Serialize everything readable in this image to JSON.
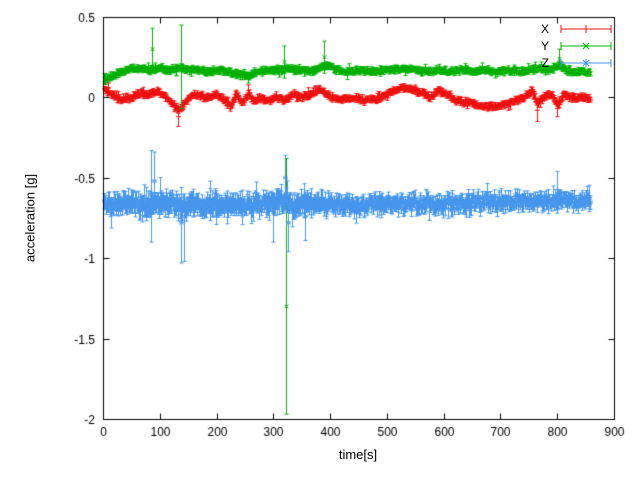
{
  "chart_data": {
    "type": "scatter",
    "title": "",
    "xlabel": "time[s]",
    "ylabel": "acceleration [g]",
    "xlim": [
      0,
      900
    ],
    "ylim": [
      -2,
      0.5
    ],
    "x_ticks": [
      0,
      100,
      200,
      300,
      400,
      500,
      600,
      700,
      800,
      900
    ],
    "y_ticks": [
      0.5,
      0,
      -0.5,
      -1,
      -1.5,
      -2
    ],
    "grid": false,
    "legend_position": "top-right",
    "axis_color": "#000000",
    "background": "#ffffff",
    "sample_step": 1.2,
    "t_range": [
      2,
      858
    ],
    "series": [
      {
        "name": "X",
        "color": "#ee1111",
        "marker": "plus",
        "noise": 0.013,
        "err": 0.02,
        "seed": 1,
        "anchors": [
          [
            0,
            0.05
          ],
          [
            15,
            0.02
          ],
          [
            30,
            -0.01
          ],
          [
            50,
            0.0
          ],
          [
            65,
            0.03
          ],
          [
            80,
            0.02
          ],
          [
            95,
            0.04
          ],
          [
            110,
            0.0
          ],
          [
            125,
            -0.05
          ],
          [
            135,
            -0.08
          ],
          [
            145,
            -0.02
          ],
          [
            160,
            0.02
          ],
          [
            180,
            0.0
          ],
          [
            200,
            0.02
          ],
          [
            215,
            -0.02
          ],
          [
            225,
            -0.06
          ],
          [
            235,
            0.02
          ],
          [
            245,
            -0.04
          ],
          [
            255,
            0.03
          ],
          [
            265,
            -0.03
          ],
          [
            275,
            0.0
          ],
          [
            290,
            -0.02
          ],
          [
            305,
            0.0
          ],
          [
            320,
            -0.02
          ],
          [
            335,
            0.02
          ],
          [
            350,
            0.0
          ],
          [
            365,
            0.02
          ],
          [
            380,
            0.05
          ],
          [
            390,
            0.03
          ],
          [
            400,
            0.0
          ],
          [
            420,
            -0.01
          ],
          [
            440,
            0.0
          ],
          [
            460,
            -0.02
          ],
          [
            480,
            -0.01
          ],
          [
            500,
            0.02
          ],
          [
            515,
            0.05
          ],
          [
            530,
            0.06
          ],
          [
            545,
            0.05
          ],
          [
            560,
            0.03
          ],
          [
            575,
            0.0
          ],
          [
            590,
            0.04
          ],
          [
            605,
            0.02
          ],
          [
            620,
            -0.02
          ],
          [
            640,
            -0.03
          ],
          [
            660,
            -0.05
          ],
          [
            680,
            -0.06
          ],
          [
            700,
            -0.05
          ],
          [
            720,
            -0.03
          ],
          [
            740,
            0.0
          ],
          [
            755,
            0.04
          ],
          [
            765,
            -0.04
          ],
          [
            775,
            0.0
          ],
          [
            790,
            0.02
          ],
          [
            800,
            -0.05
          ],
          [
            810,
            0.02
          ],
          [
            825,
            0.0
          ],
          [
            840,
            0.0
          ],
          [
            858,
            -0.01
          ]
        ],
        "outliers": [
          [
            8,
            0.09,
            0.03,
            0.03
          ],
          [
            132,
            -0.12,
            0.06,
            0.06
          ],
          [
            765,
            -0.08,
            0.05,
            0.07
          ],
          [
            800,
            -0.07,
            0.05,
            0.05
          ]
        ]
      },
      {
        "name": "Y",
        "color": "#00b000",
        "marker": "cross",
        "noise": 0.013,
        "err": 0.02,
        "seed": 2,
        "anchors": [
          [
            0,
            0.1
          ],
          [
            10,
            0.12
          ],
          [
            25,
            0.15
          ],
          [
            40,
            0.17
          ],
          [
            60,
            0.18
          ],
          [
            80,
            0.17
          ],
          [
            100,
            0.18
          ],
          [
            120,
            0.17
          ],
          [
            140,
            0.18
          ],
          [
            160,
            0.17
          ],
          [
            180,
            0.16
          ],
          [
            200,
            0.17
          ],
          [
            220,
            0.16
          ],
          [
            240,
            0.14
          ],
          [
            255,
            0.13
          ],
          [
            270,
            0.16
          ],
          [
            290,
            0.17
          ],
          [
            310,
            0.17
          ],
          [
            325,
            0.18
          ],
          [
            340,
            0.17
          ],
          [
            360,
            0.16
          ],
          [
            380,
            0.18
          ],
          [
            395,
            0.2
          ],
          [
            410,
            0.17
          ],
          [
            430,
            0.16
          ],
          [
            450,
            0.17
          ],
          [
            470,
            0.16
          ],
          [
            490,
            0.17
          ],
          [
            510,
            0.17
          ],
          [
            530,
            0.18
          ],
          [
            550,
            0.17
          ],
          [
            570,
            0.16
          ],
          [
            590,
            0.17
          ],
          [
            610,
            0.16
          ],
          [
            630,
            0.17
          ],
          [
            650,
            0.16
          ],
          [
            670,
            0.17
          ],
          [
            690,
            0.16
          ],
          [
            710,
            0.17
          ],
          [
            730,
            0.16
          ],
          [
            750,
            0.17
          ],
          [
            770,
            0.18
          ],
          [
            790,
            0.17
          ],
          [
            805,
            0.2
          ],
          [
            815,
            0.17
          ],
          [
            830,
            0.16
          ],
          [
            858,
            0.16
          ]
        ],
        "outliers": [
          [
            86,
            0.3,
            0.13,
            0.12
          ],
          [
            138,
            0.2,
            0.25,
            0.27
          ],
          [
            318,
            0.22,
            0.1,
            0.1
          ],
          [
            322,
            -1.3,
            0.92,
            0.67
          ],
          [
            390,
            0.25,
            0.1,
            0.1
          ],
          [
            804,
            0.24,
            0.06,
            0.06
          ]
        ]
      },
      {
        "name": "Z",
        "color": "#4696ec",
        "marker": "asterisk",
        "noise": 0.035,
        "err": 0.055,
        "seed": 3,
        "spread": [
          [
            0,
            1.1
          ],
          [
            80,
            1.35
          ],
          [
            160,
            1.25
          ],
          [
            240,
            1.15
          ],
          [
            320,
            1.3
          ],
          [
            400,
            1.1
          ],
          [
            500,
            1.0
          ],
          [
            600,
            0.92
          ],
          [
            700,
            0.88
          ],
          [
            858,
            0.85
          ]
        ],
        "anchors": [
          [
            0,
            -0.66
          ],
          [
            20,
            -0.67
          ],
          [
            40,
            -0.66
          ],
          [
            60,
            -0.67
          ],
          [
            80,
            -0.66
          ],
          [
            100,
            -0.67
          ],
          [
            120,
            -0.66
          ],
          [
            140,
            -0.68
          ],
          [
            160,
            -0.66
          ],
          [
            180,
            -0.67
          ],
          [
            200,
            -0.66
          ],
          [
            220,
            -0.67
          ],
          [
            240,
            -0.66
          ],
          [
            260,
            -0.67
          ],
          [
            280,
            -0.66
          ],
          [
            300,
            -0.66
          ],
          [
            320,
            -0.63
          ],
          [
            335,
            -0.68
          ],
          [
            350,
            -0.66
          ],
          [
            370,
            -0.66
          ],
          [
            390,
            -0.67
          ],
          [
            410,
            -0.66
          ],
          [
            430,
            -0.66
          ],
          [
            450,
            -0.67
          ],
          [
            470,
            -0.66
          ],
          [
            490,
            -0.66
          ],
          [
            510,
            -0.66
          ],
          [
            530,
            -0.67
          ],
          [
            550,
            -0.66
          ],
          [
            570,
            -0.66
          ],
          [
            590,
            -0.67
          ],
          [
            610,
            -0.66
          ],
          [
            630,
            -0.66
          ],
          [
            650,
            -0.65
          ],
          [
            670,
            -0.65
          ],
          [
            690,
            -0.64
          ],
          [
            710,
            -0.65
          ],
          [
            730,
            -0.64
          ],
          [
            750,
            -0.65
          ],
          [
            770,
            -0.64
          ],
          [
            790,
            -0.65
          ],
          [
            810,
            -0.64
          ],
          [
            830,
            -0.65
          ],
          [
            858,
            -0.64
          ]
        ],
        "outliers": [
          [
            85,
            -0.6,
            0.27,
            0.3
          ],
          [
            90,
            -0.52,
            0.18,
            0.18
          ],
          [
            138,
            -0.78,
            0.22,
            0.25
          ],
          [
            142,
            -0.7,
            0.1,
            0.32
          ],
          [
            300,
            -0.72,
            0.1,
            0.18
          ],
          [
            320,
            -0.5,
            0.14,
            0.14
          ],
          [
            325,
            -0.78,
            0.15,
            0.18
          ],
          [
            355,
            -0.74,
            0.15,
            0.15
          ],
          [
            800,
            -0.6,
            0.14,
            0.12
          ]
        ]
      }
    ]
  }
}
